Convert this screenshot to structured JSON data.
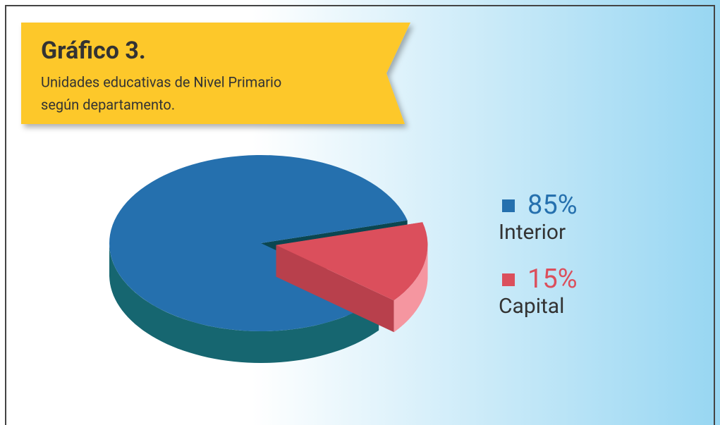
{
  "chart_data": {
    "type": "pie",
    "title": "Gráfico 3.",
    "subtitle": [
      "Unidades educativas de Nivel Primario",
      "según departamento."
    ],
    "categories": [
      "Interior",
      "Capital"
    ],
    "values": [
      85,
      15
    ],
    "value_labels": [
      "85%",
      "15%"
    ],
    "colors": [
      "#2570ae",
      "#db4f5c"
    ]
  }
}
